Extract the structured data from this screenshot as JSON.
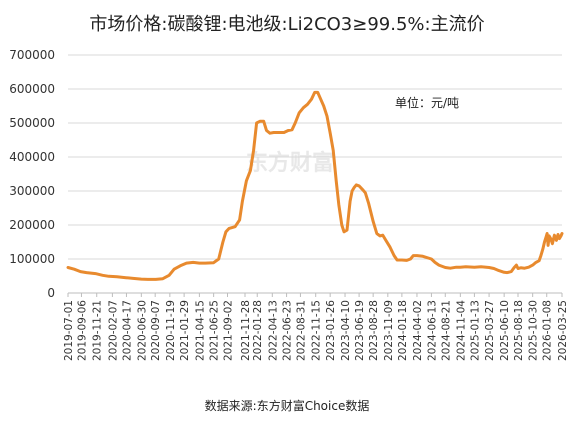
{
  "chart_data": {
    "type": "line",
    "title": "市场价格:碳酸锂:电池级:Li2CO3≥99.5%:主流价",
    "unit_label": "单位：元/吨",
    "source": "数据来源:东方财富Choice数据",
    "watermark": "东方财富",
    "color": "#e88a2e",
    "ylim": [
      0,
      700000
    ],
    "yticks": [
      0,
      100000,
      200000,
      300000,
      400000,
      500000,
      600000,
      700000
    ],
    "xticks": [
      "2019-07-01",
      "2019-09-06",
      "2019-11-21",
      "2020-02-07",
      "2020-04-17",
      "2020-06-30",
      "2020-09-07",
      "2020-11-19",
      "2021-01-29",
      "2021-04-15",
      "2021-06-25",
      "2021-09-02",
      "2021-11-28",
      "2022-01-28",
      "2022-04-13",
      "2022-06-23",
      "2022-08-31",
      "2022-11-15",
      "2023-01-26",
      "2023-04-10",
      "2023-06-19",
      "2023-08-28",
      "2023-11-09",
      "2024-01-18",
      "2024-04-02",
      "2024-06-13",
      "2024-08-21",
      "2024-11-04",
      "2025-01-13",
      "2025-03-27",
      "2025-06-10",
      "2025-08-18",
      "2025-10-30",
      "2026-01-08",
      "2026-03-25"
    ],
    "series": [
      {
        "points": [
          [
            "2019-07-01",
            75000
          ],
          [
            "2019-08-01",
            70000
          ],
          [
            "2019-09-01",
            63000
          ],
          [
            "2019-10-01",
            60000
          ],
          [
            "2019-11-15",
            57000
          ],
          [
            "2019-12-20",
            52000
          ],
          [
            "2020-01-20",
            49000
          ],
          [
            "2020-03-01",
            48000
          ],
          [
            "2020-04-15",
            45000
          ],
          [
            "2020-05-20",
            43000
          ],
          [
            "2020-06-30",
            41000
          ],
          [
            "2020-08-01",
            40000
          ],
          [
            "2020-09-10",
            40000
          ],
          [
            "2020-10-15",
            42000
          ],
          [
            "2020-11-15",
            52000
          ],
          [
            "2020-12-10",
            70000
          ],
          [
            "2021-01-10",
            80000
          ],
          [
            "2021-02-10",
            88000
          ],
          [
            "2021-03-15",
            90000
          ],
          [
            "2021-04-15",
            88000
          ],
          [
            "2021-05-15",
            88000
          ],
          [
            "2021-06-25",
            89000
          ],
          [
            "2021-07-20",
            100000
          ],
          [
            "2021-08-10",
            150000
          ],
          [
            "2021-08-25",
            180000
          ],
          [
            "2021-09-10",
            190000
          ],
          [
            "2021-10-10",
            195000
          ],
          [
            "2021-11-01",
            215000
          ],
          [
            "2021-11-15",
            270000
          ],
          [
            "2021-12-05",
            330000
          ],
          [
            "2021-12-25",
            360000
          ],
          [
            "2022-01-10",
            420000
          ],
          [
            "2022-01-25",
            500000
          ],
          [
            "2022-02-10",
            505000
          ],
          [
            "2022-03-01",
            505000
          ],
          [
            "2022-03-15",
            478000
          ],
          [
            "2022-04-01",
            470000
          ],
          [
            "2022-04-20",
            472000
          ],
          [
            "2022-05-15",
            472000
          ],
          [
            "2022-06-10",
            472000
          ],
          [
            "2022-07-01",
            478000
          ],
          [
            "2022-07-20",
            480000
          ],
          [
            "2022-08-05",
            500000
          ],
          [
            "2022-08-25",
            530000
          ],
          [
            "2022-09-15",
            545000
          ],
          [
            "2022-10-05",
            555000
          ],
          [
            "2022-10-25",
            570000
          ],
          [
            "2022-11-10",
            590000
          ],
          [
            "2022-11-25",
            590000
          ],
          [
            "2022-12-10",
            570000
          ],
          [
            "2022-12-25",
            550000
          ],
          [
            "2023-01-10",
            520000
          ],
          [
            "2023-01-26",
            470000
          ],
          [
            "2023-02-10",
            420000
          ],
          [
            "2023-02-25",
            330000
          ],
          [
            "2023-03-10",
            260000
          ],
          [
            "2023-03-25",
            200000
          ],
          [
            "2023-04-05",
            180000
          ],
          [
            "2023-04-20",
            185000
          ],
          [
            "2023-05-05",
            270000
          ],
          [
            "2023-05-15",
            300000
          ],
          [
            "2023-05-25",
            310000
          ],
          [
            "2023-06-05",
            318000
          ],
          [
            "2023-06-19",
            315000
          ],
          [
            "2023-07-05",
            305000
          ],
          [
            "2023-07-20",
            295000
          ],
          [
            "2023-08-05",
            265000
          ],
          [
            "2023-08-28",
            210000
          ],
          [
            "2023-09-15",
            175000
          ],
          [
            "2023-10-01",
            168000
          ],
          [
            "2023-10-15",
            170000
          ],
          [
            "2023-10-30",
            155000
          ],
          [
            "2023-11-20",
            135000
          ],
          [
            "2023-12-10",
            110000
          ],
          [
            "2023-12-25",
            97000
          ],
          [
            "2024-01-18",
            97000
          ],
          [
            "2024-02-10",
            96000
          ],
          [
            "2024-03-01",
            100000
          ],
          [
            "2024-03-15",
            110000
          ],
          [
            "2024-04-02",
            110000
          ],
          [
            "2024-05-01",
            108000
          ],
          [
            "2024-06-13",
            100000
          ],
          [
            "2024-07-01",
            90000
          ],
          [
            "2024-07-20",
            82000
          ],
          [
            "2024-08-21",
            75000
          ],
          [
            "2024-09-15",
            73000
          ],
          [
            "2024-10-15",
            76000
          ],
          [
            "2024-11-04",
            76000
          ],
          [
            "2024-12-01",
            77000
          ],
          [
            "2025-01-13",
            76000
          ],
          [
            "2025-02-15",
            77000
          ],
          [
            "2025-03-27",
            75000
          ],
          [
            "2025-04-20",
            72000
          ],
          [
            "2025-05-15",
            66000
          ],
          [
            "2025-06-10",
            61000
          ],
          [
            "2025-06-25",
            60000
          ],
          [
            "2025-07-15",
            63000
          ],
          [
            "2025-07-30",
            75000
          ],
          [
            "2025-08-10",
            82000
          ],
          [
            "2025-08-18",
            72000
          ],
          [
            "2025-09-01",
            74000
          ],
          [
            "2025-09-20",
            73000
          ],
          [
            "2025-10-10",
            76000
          ],
          [
            "2025-10-30",
            82000
          ],
          [
            "2025-11-15",
            90000
          ],
          [
            "2025-12-01",
            95000
          ],
          [
            "2025-12-10",
            110000
          ],
          [
            "2025-12-20",
            130000
          ],
          [
            "2025-12-28",
            150000
          ],
          [
            "2026-01-05",
            165000
          ],
          [
            "2026-01-10",
            175000
          ],
          [
            "2026-01-15",
            140000
          ],
          [
            "2026-01-20",
            168000
          ],
          [
            "2026-01-28",
            160000
          ],
          [
            "2026-02-05",
            145000
          ],
          [
            "2026-02-15",
            170000
          ],
          [
            "2026-02-25",
            155000
          ],
          [
            "2026-03-05",
            172000
          ],
          [
            "2026-03-12",
            160000
          ],
          [
            "2026-03-20",
            168000
          ],
          [
            "2026-03-25",
            175000
          ]
        ]
      }
    ]
  }
}
